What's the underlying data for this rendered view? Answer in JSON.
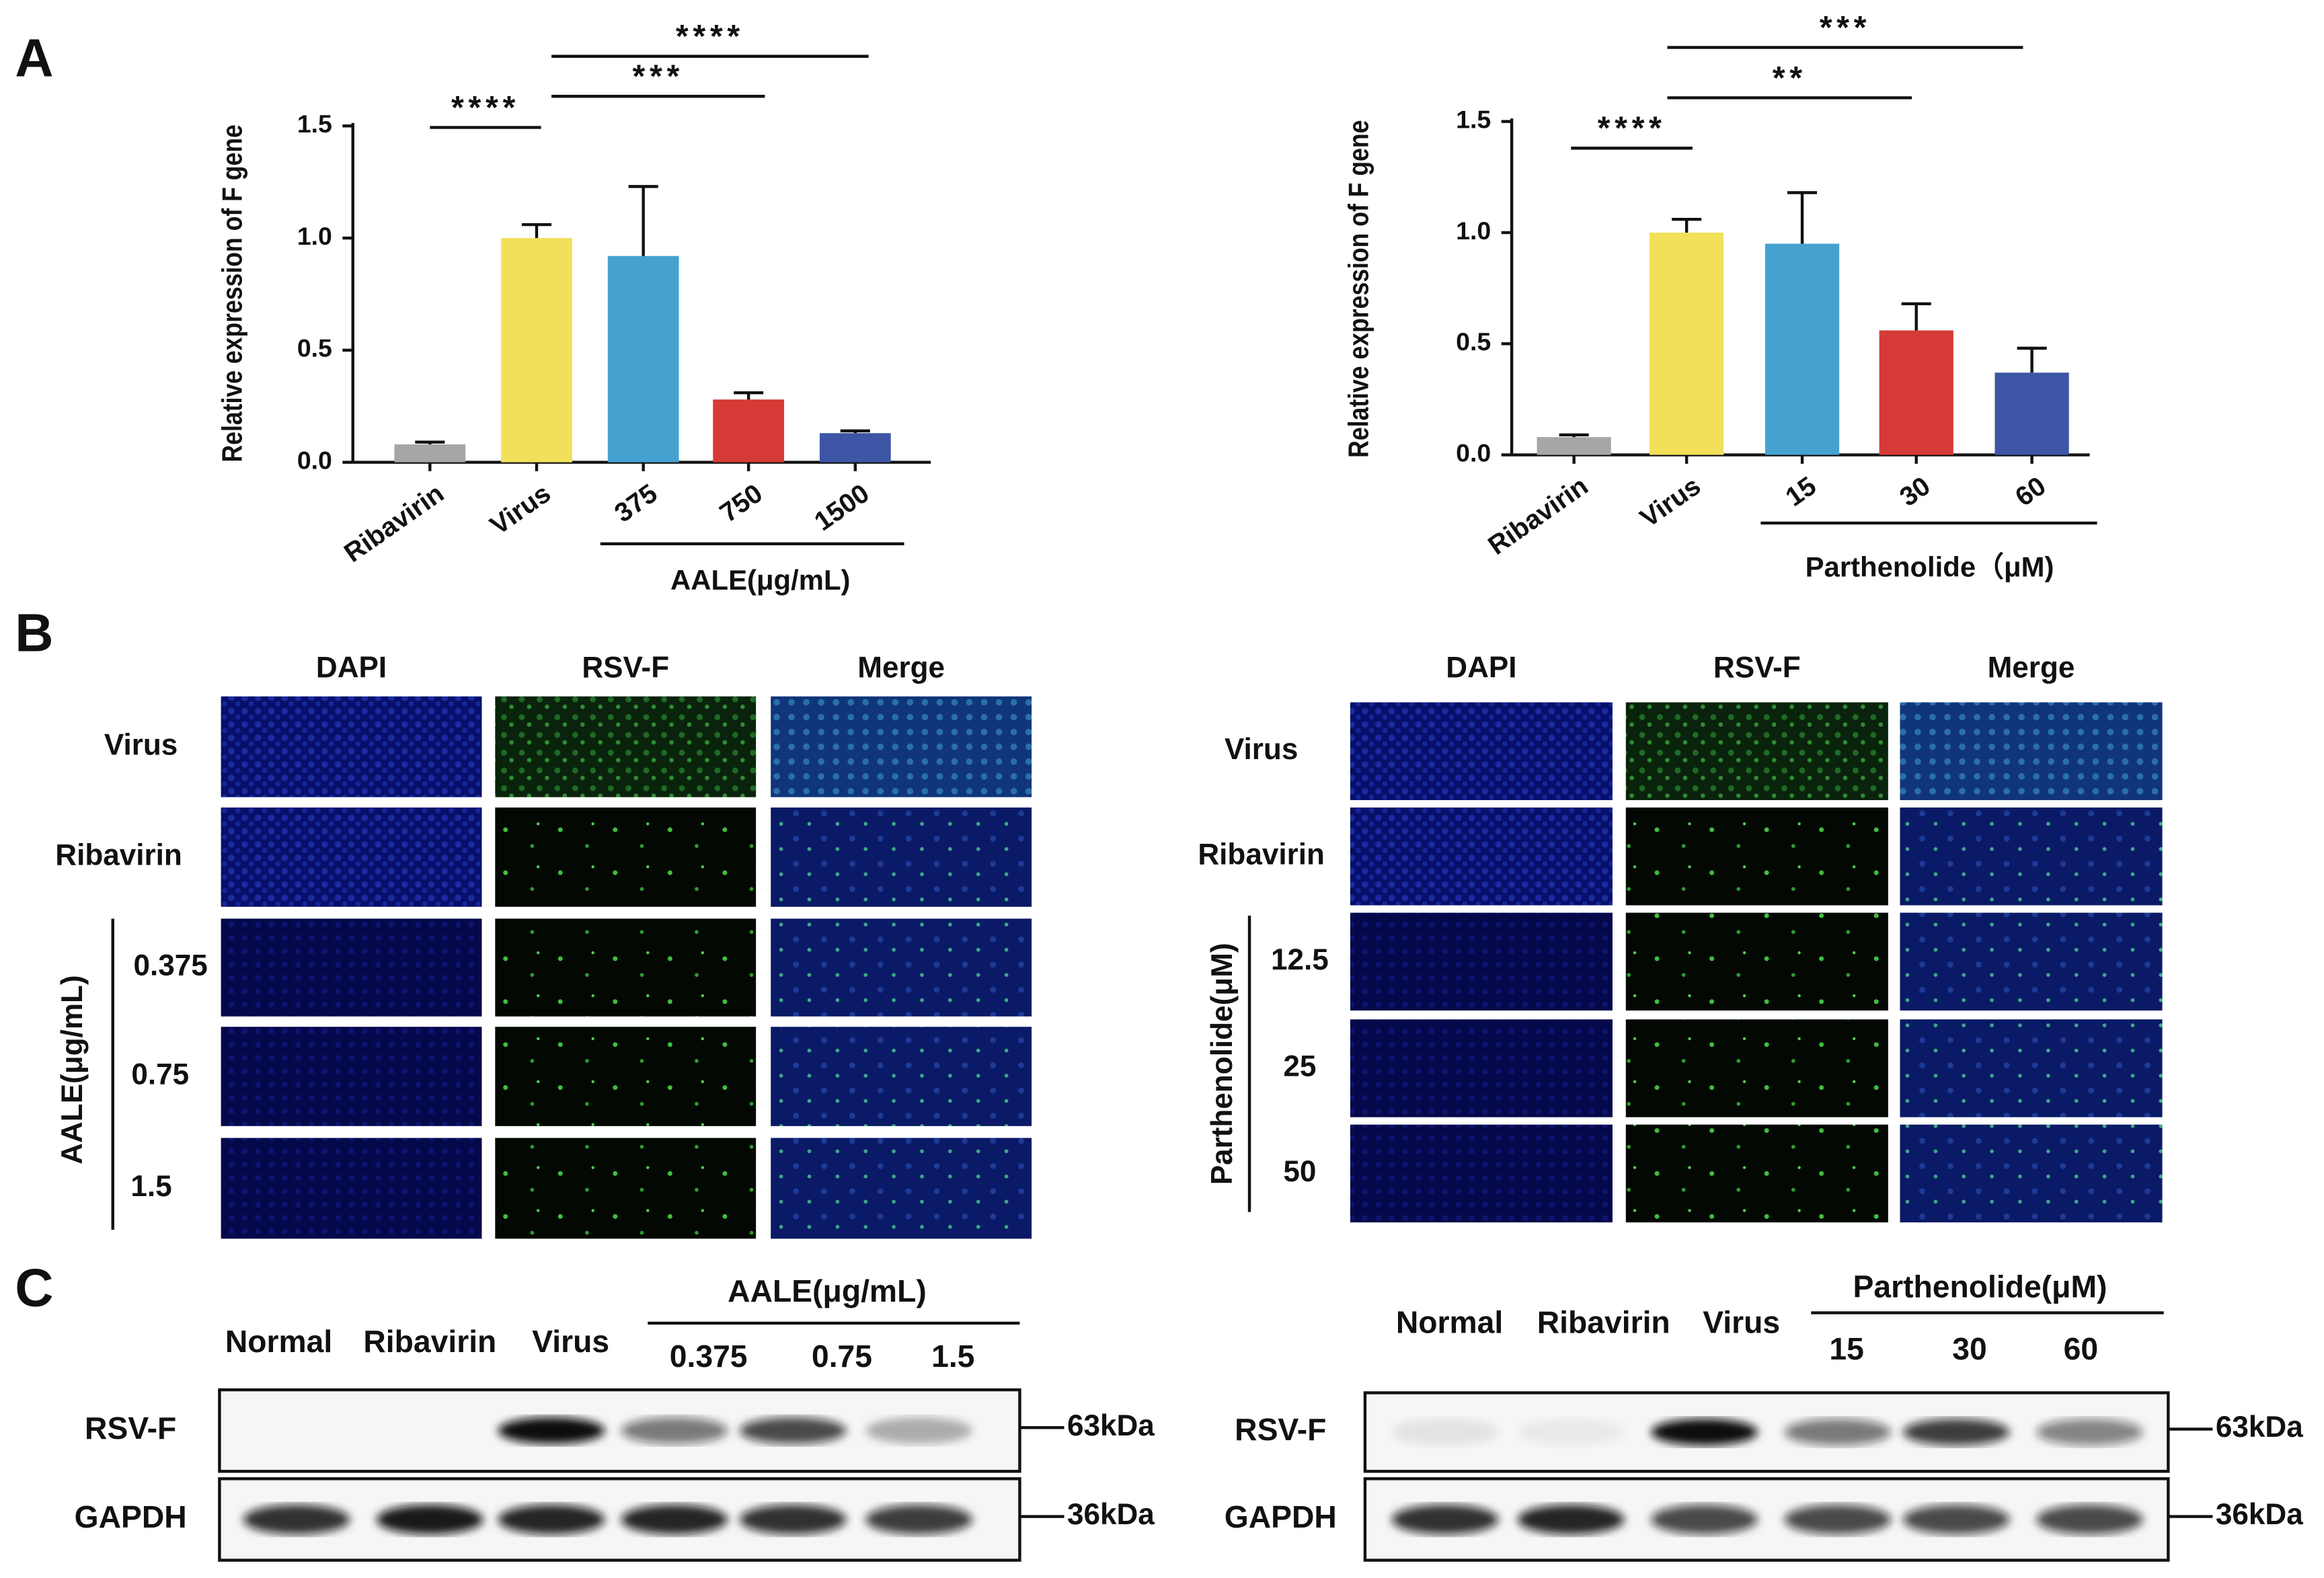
{
  "panel_labels": [
    "A",
    "B",
    "C"
  ],
  "chart_data": [
    {
      "type": "bar",
      "y_label": "Relative expression of F gene",
      "categories": [
        "Ribavirin",
        "Virus",
        "375",
        "750",
        "1500"
      ],
      "values": [
        0.08,
        1.0,
        0.92,
        0.28,
        0.13
      ],
      "errors": [
        0.01,
        0.06,
        0.31,
        0.03,
        0.01
      ],
      "colors": [
        "#a6a6a6",
        "#f2e05a",
        "#45a2d0",
        "#d63a36",
        "#3c56a5"
      ],
      "group_label": "AALE(μg/mL)",
      "significance": [
        "****",
        "***",
        "****"
      ],
      "ylim": [
        0,
        1.5
      ],
      "yticks": [
        {
          "value": 0,
          "label": "0.0"
        },
        {
          "value": 0.5,
          "label": "0.5"
        },
        {
          "value": 1,
          "label": "1.0"
        },
        {
          "value": 1.5,
          "label": "1.5"
        }
      ]
    },
    {
      "type": "bar",
      "y_label": "Relative expression of F gene",
      "categories": [
        "Ribavirin",
        "Virus",
        "15",
        "30",
        "60"
      ],
      "values": [
        0.08,
        1.0,
        0.95,
        0.56,
        0.37
      ],
      "errors": [
        0.01,
        0.06,
        0.23,
        0.12,
        0.11
      ],
      "colors": [
        "#a6a6a6",
        "#f2e05a",
        "#45a2d0",
        "#d63a36",
        "#3c56a5"
      ],
      "group_label": "Parthenolide（μM)",
      "significance": [
        "****",
        "**",
        "***"
      ],
      "ylim": [
        0,
        1.5
      ],
      "yticks": [
        {
          "value": 0,
          "label": "0.0"
        },
        {
          "value": 0.5,
          "label": "0.5"
        },
        {
          "value": 1,
          "label": "1.0"
        },
        {
          "value": 1.5,
          "label": "1.5"
        }
      ]
    }
  ],
  "immunofluorescence": [
    {
      "columns": [
        "DAPI",
        "RSV-F",
        "Merge"
      ],
      "rows": [
        "Virus",
        "Ribavirin",
        "0.375",
        "0.75",
        "1.5"
      ],
      "group": "AALE(μg/mL)"
    },
    {
      "columns": [
        "DAPI",
        "RSV-F",
        "Merge"
      ],
      "rows": [
        "Virus",
        "Ribavirin",
        "12.5",
        "25",
        "50"
      ],
      "group": "Parthenolide(μM)"
    }
  ],
  "western_blots": [
    {
      "lanes": [
        "Normal",
        "Ribavirin",
        "Virus",
        "0.375",
        "0.75",
        "1.5"
      ],
      "group": "AALE(μg/mL)",
      "rows": [
        "RSV-F",
        "GAPDH"
      ],
      "sizes": [
        "63kDa",
        "36kDa"
      ]
    },
    {
      "lanes": [
        "Normal",
        "Ribavirin",
        "Virus",
        "15",
        "30",
        "60"
      ],
      "group": "Parthenolide(μM)",
      "rows": [
        "RSV-F",
        "GAPDH"
      ],
      "sizes": [
        "63kDa",
        "36kDa"
      ]
    }
  ]
}
